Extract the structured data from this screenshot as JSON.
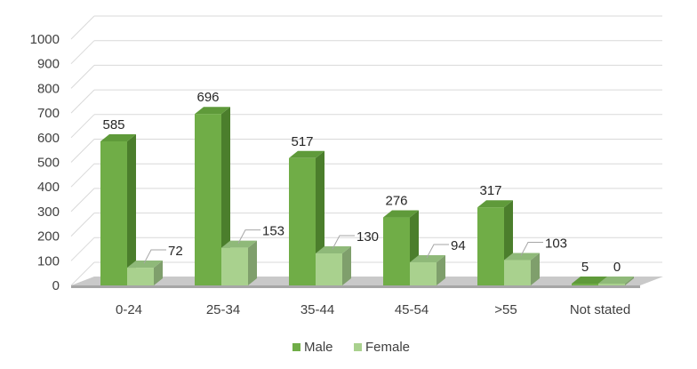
{
  "chart_data": {
    "type": "bar",
    "style": "3d-clustered-column",
    "title": "",
    "xlabel": "",
    "ylabel": "",
    "categories": [
      "0-24",
      "25-34",
      "35-44",
      "45-54",
      ">55",
      "Not stated"
    ],
    "ylim": [
      0,
      1000
    ],
    "yticks": [
      0,
      100,
      200,
      300,
      400,
      500,
      600,
      700,
      800,
      900,
      1000
    ],
    "grid": true,
    "legend_position": "bottom",
    "series": [
      {
        "name": "Male",
        "values": [
          585,
          696,
          517,
          276,
          317,
          5
        ],
        "colors": {
          "front": "#70ad47",
          "top": "#5f9a3a",
          "side": "#4b7e2c"
        }
      },
      {
        "name": "Female",
        "values": [
          72,
          153,
          130,
          94,
          103,
          0
        ],
        "colors": {
          "front": "#a9d18e",
          "top": "#8fb979",
          "side": "#7f9f6c"
        }
      }
    ]
  }
}
